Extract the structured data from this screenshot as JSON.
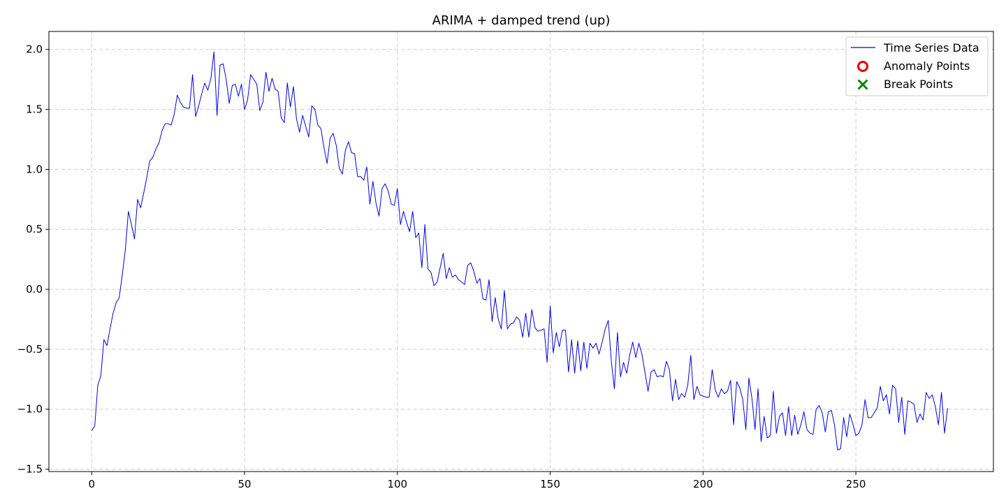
{
  "chart_data": {
    "type": "line",
    "title": "ARIMA + damped trend (up)",
    "xlabel": "",
    "ylabel": "",
    "xlim": [
      -14,
      295
    ],
    "ylim": [
      -1.52,
      2.15
    ],
    "xticks": [
      0,
      50,
      100,
      150,
      200,
      250
    ],
    "yticks": [
      -1.5,
      -1.0,
      -0.5,
      0.0,
      0.5,
      1.0,
      1.5,
      2.0
    ],
    "xtick_labels": [
      "0",
      "50",
      "100",
      "150",
      "200",
      "250"
    ],
    "ytick_labels": [
      "−1.5",
      "−1.0",
      "−0.5",
      "0.0",
      "0.5",
      "1.0",
      "1.5",
      "2.0"
    ],
    "grid": true,
    "legend_position": "top-right",
    "legend": [
      "Time Series Data",
      "Anomaly Points",
      "Break Points"
    ],
    "colors": {
      "line": "#0000ee",
      "anomaly": "#ee0000",
      "break": "#008800",
      "grid": "#cccccc"
    },
    "series": [
      {
        "name": "Time Series Data",
        "x_start": 0,
        "values": [
          -1.18,
          -1.14,
          -0.8,
          -0.72,
          -0.42,
          -0.47,
          -0.33,
          -0.2,
          -0.11,
          -0.07,
          0.12,
          0.33,
          0.65,
          0.54,
          0.42,
          0.75,
          0.68,
          0.8,
          0.93,
          1.07,
          1.1,
          1.17,
          1.22,
          1.32,
          1.38,
          1.38,
          1.37,
          1.46,
          1.62,
          1.56,
          1.52,
          1.51,
          1.51,
          1.79,
          1.44,
          1.53,
          1.63,
          1.72,
          1.66,
          1.76,
          1.98,
          1.45,
          1.87,
          1.88,
          1.75,
          1.55,
          1.7,
          1.71,
          1.61,
          1.71,
          1.5,
          1.58,
          1.79,
          1.75,
          1.71,
          1.49,
          1.56,
          1.81,
          1.65,
          1.76,
          1.67,
          1.65,
          1.43,
          1.39,
          1.72,
          1.52,
          1.69,
          1.42,
          1.31,
          1.45,
          1.36,
          1.27,
          1.53,
          1.5,
          1.37,
          1.34,
          1.18,
          1.05,
          1.26,
          1.3,
          1.2,
          1.01,
          0.96,
          1.16,
          1.23,
          1.14,
          1.13,
          0.94,
          0.94,
          0.91,
          1.02,
          0.71,
          0.9,
          0.72,
          0.61,
          0.84,
          0.88,
          0.82,
          0.71,
          0.7,
          0.84,
          0.54,
          0.65,
          0.56,
          0.48,
          0.65,
          0.43,
          0.47,
          0.18,
          0.54,
          0.17,
          0.14,
          0.03,
          0.06,
          0.18,
          0.3,
          0.09,
          0.18,
          0.1,
          0.12,
          0.08,
          0.06,
          0.04,
          0.2,
          0.22,
          0.15,
          0.05,
          0.09,
          -0.08,
          -0.09,
          0.08,
          -0.27,
          -0.07,
          -0.25,
          -0.33,
          -0.01,
          -0.33,
          -0.29,
          -0.28,
          -0.23,
          -0.26,
          -0.4,
          -0.2,
          -0.4,
          -0.17,
          -0.32,
          -0.35,
          -0.34,
          -0.33,
          -0.61,
          -0.14,
          -0.53,
          -0.36,
          -0.48,
          -0.34,
          -0.34,
          -0.69,
          -0.42,
          -0.7,
          -0.43,
          -0.68,
          -0.44,
          -0.66,
          -0.45,
          -0.49,
          -0.45,
          -0.54,
          -0.44,
          -0.33,
          -0.26,
          -0.6,
          -0.83,
          -0.36,
          -0.73,
          -0.61,
          -0.7,
          -0.55,
          -0.44,
          -0.57,
          -0.45,
          -0.54,
          -0.69,
          -0.85,
          -0.69,
          -0.67,
          -0.73,
          -0.72,
          -0.73,
          -0.6,
          -0.67,
          -0.93,
          -0.75,
          -0.92,
          -0.87,
          -0.9,
          -0.8,
          -0.55,
          -0.92,
          -0.81,
          -0.88,
          -0.89,
          -0.9,
          -0.9,
          -0.67,
          -0.84,
          -0.9,
          -0.83,
          -0.87,
          -0.85,
          -0.76,
          -1.13,
          -0.77,
          -0.82,
          -0.92,
          -1.17,
          -0.74,
          -0.91,
          -1.17,
          -0.83,
          -1.27,
          -1.06,
          -1.24,
          -1.22,
          -0.85,
          -1.2,
          -1.06,
          -1.03,
          -1.22,
          -0.98,
          -1.22,
          -1.05,
          -1.21,
          -1.13,
          -1.02,
          -1.17,
          -1.2,
          -1.21,
          -1.0,
          -0.97,
          -1.03,
          -1.19,
          -1.02,
          -1.01,
          -1.13,
          -1.34,
          -1.33,
          -1.07,
          -1.23,
          -1.04,
          -1.12,
          -1.22,
          -1.2,
          -1.13,
          -0.92,
          -1.07,
          -1.07,
          -1.03,
          -0.99,
          -0.81,
          -0.93,
          -0.88,
          -1.04,
          -0.8,
          -0.83,
          -1.11,
          -0.9,
          -1.21,
          -0.93,
          -0.94,
          -0.96,
          -1.11,
          -1.04,
          -1.09,
          -0.86,
          -0.91,
          -0.88,
          -0.98,
          -1.13,
          -0.86,
          -1.2,
          -0.99
        ]
      }
    ],
    "anomaly_points": [],
    "break_points": []
  }
}
